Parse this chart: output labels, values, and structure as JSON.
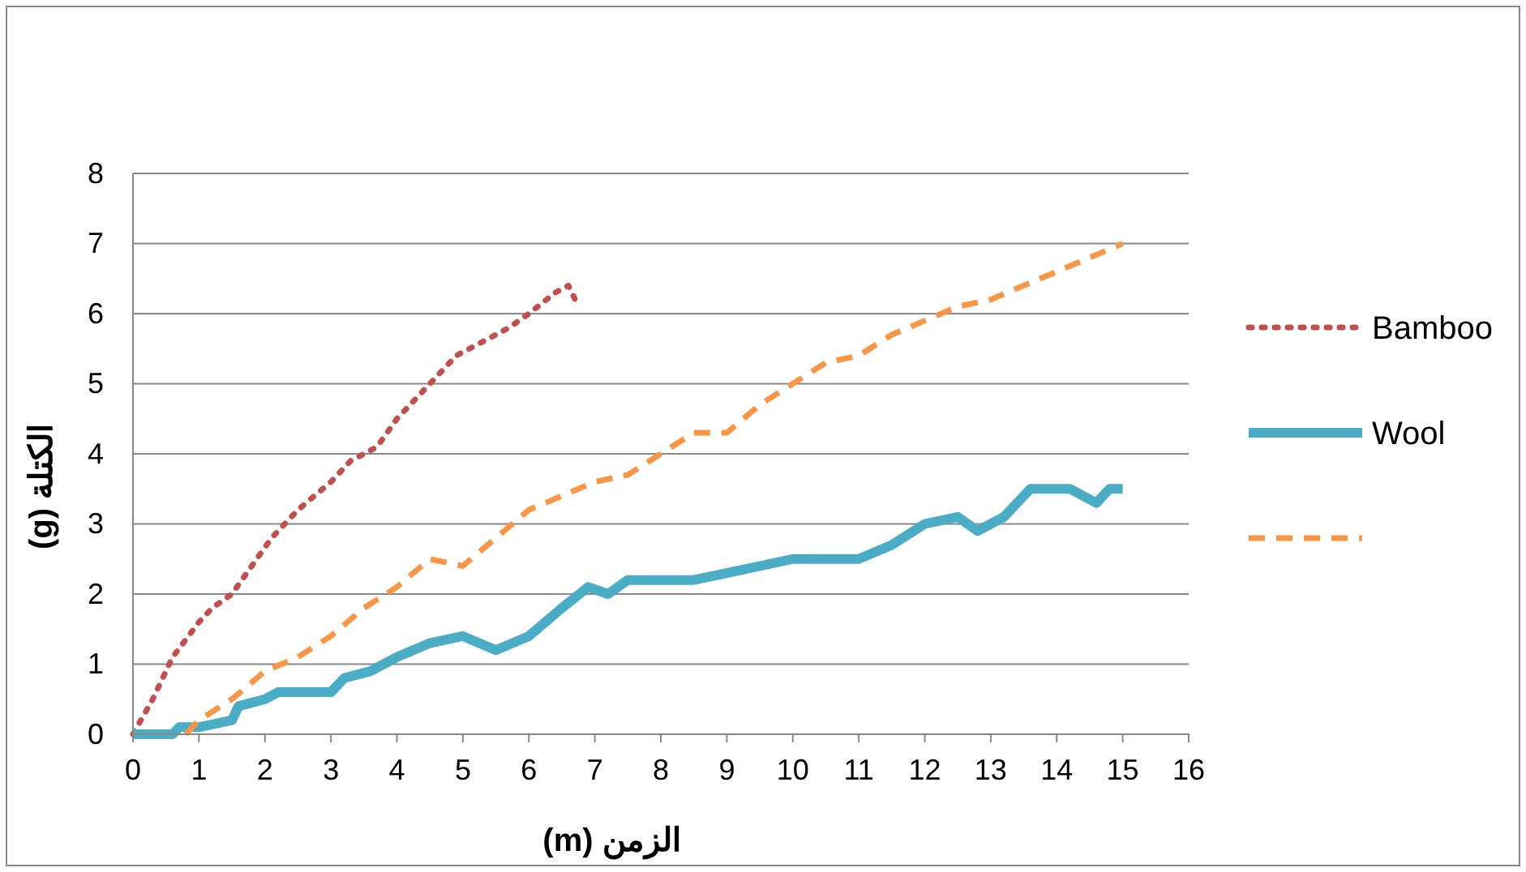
{
  "chart_data": {
    "type": "line",
    "xlabel": "الزمن (m)",
    "ylabel": "الكتلة (g)",
    "xlim": [
      0,
      16
    ],
    "xticks": [
      0,
      1,
      2,
      3,
      4,
      5,
      6,
      7,
      8,
      9,
      10,
      11,
      12,
      13,
      14,
      15,
      16
    ],
    "ylim": [
      0,
      8
    ],
    "yticks": [
      0,
      1,
      2,
      3,
      4,
      5,
      6,
      7,
      8
    ],
    "grid": "y",
    "legend": "right",
    "marker": "none",
    "series": [
      {
        "name": "Bamboo",
        "color": "#c0504d",
        "line_style": "dotted",
        "x": [
          0,
          0.3,
          0.6,
          1,
          1.2,
          1.5,
          1.8,
          2.1,
          2.5,
          3,
          3.3,
          3.7,
          4,
          4.5,
          4.9,
          5.3,
          5.7,
          6,
          6.4,
          6.6,
          6.7
        ],
        "values": [
          0,
          0.5,
          1.1,
          1.6,
          1.8,
          2,
          2.4,
          2.8,
          3.2,
          3.6,
          3.9,
          4.1,
          4.5,
          5,
          5.4,
          5.6,
          5.8,
          6,
          6.3,
          6.4,
          6.2
        ]
      },
      {
        "name": "Wool",
        "color": "#4bacc6",
        "line_style": "solid",
        "x": [
          0,
          0.6,
          0.7,
          1,
          1.5,
          1.6,
          2,
          2.2,
          3,
          3.2,
          3.6,
          4,
          4.5,
          5,
          5.5,
          6,
          6.5,
          6.9,
          7.2,
          7.5,
          8.5,
          9,
          10,
          11,
          11.5,
          12,
          12.5,
          12.8,
          13.2,
          13.6,
          14,
          14.2,
          14.6,
          14.8,
          15
        ],
        "values": [
          0,
          0,
          0.1,
          0.1,
          0.2,
          0.4,
          0.5,
          0.6,
          0.6,
          0.8,
          0.9,
          1.1,
          1.3,
          1.4,
          1.2,
          1.4,
          1.8,
          2.1,
          2,
          2.2,
          2.2,
          2.3,
          2.5,
          2.5,
          2.7,
          3,
          3.1,
          2.9,
          3.1,
          3.5,
          3.5,
          3.5,
          3.3,
          3.5,
          3.5
        ]
      },
      {
        "color": "#f79646",
        "line_style": "dashed",
        "x": [
          0.8,
          1,
          1.5,
          2,
          2.5,
          3,
          3.5,
          4,
          4.5,
          5,
          5.5,
          6,
          6.5,
          7,
          7.5,
          8,
          8.5,
          9,
          9.5,
          10,
          10.5,
          11,
          11.5,
          12,
          12.5,
          13,
          13.5,
          14,
          14.5,
          15
        ],
        "values": [
          0,
          0.2,
          0.5,
          0.9,
          1.1,
          1.4,
          1.8,
          2.1,
          2.5,
          2.4,
          2.8,
          3.2,
          3.4,
          3.6,
          3.7,
          4,
          4.3,
          4.3,
          4.7,
          5,
          5.3,
          5.4,
          5.7,
          5.9,
          6.1,
          6.2,
          6.4,
          6.6,
          6.8,
          7
        ]
      }
    ]
  }
}
